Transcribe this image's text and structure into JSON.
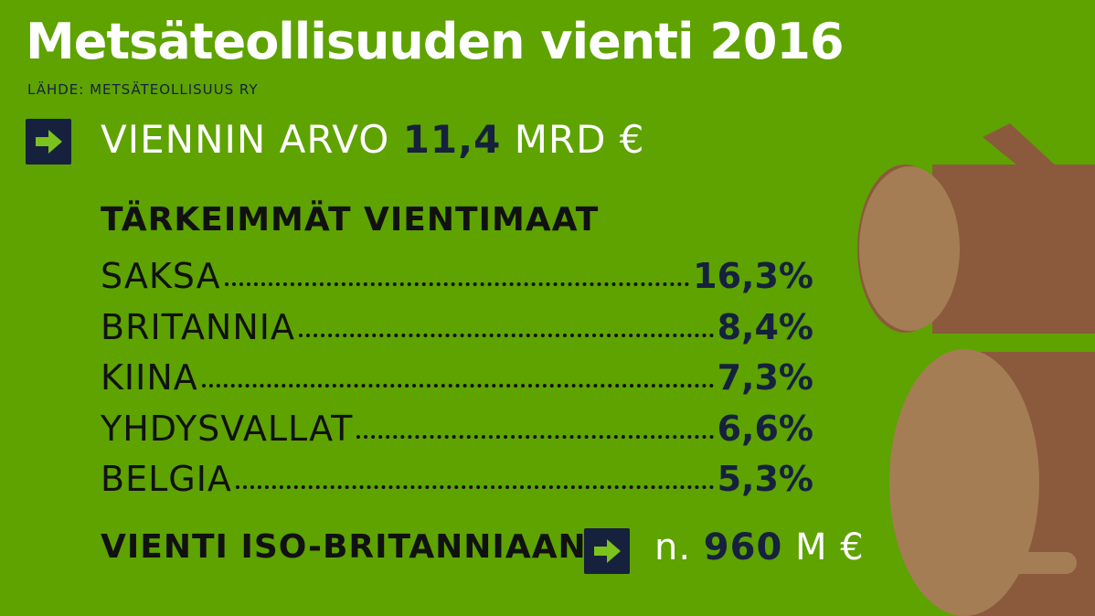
{
  "title": "Metsäteollisuuden vienti 2016",
  "source": "LÄHDE: METSÄTEOLLISUUS RY",
  "export_value": {
    "prefix": "VIENNIN ARVO",
    "number": "11,4",
    "unit": "MRD €"
  },
  "heading": "TÄRKEIMMÄT VIENTIMAAT",
  "countries": [
    {
      "name": "SAKSA",
      "share": "16,3%"
    },
    {
      "name": "BRITANNIA",
      "share": "8,4%"
    },
    {
      "name": "KIINA",
      "share": "7,3%"
    },
    {
      "name": "YHDYSVALLAT",
      "share": "6,6%"
    },
    {
      "name": "BELGIA",
      "share": "5,3%"
    }
  ],
  "uk_export": {
    "label": "VIENTI ISO-BRITANNIAAN",
    "prefix": "n.",
    "number": "960",
    "unit": "M €"
  },
  "colors": {
    "background": "#5ea300",
    "navy": "#16213d",
    "arrow_green": "#7cc21c",
    "log_bark": "#8b5a3c",
    "log_end": "#a57d55"
  },
  "icons": [
    "arrow-right-icon",
    "log-illustration"
  ]
}
